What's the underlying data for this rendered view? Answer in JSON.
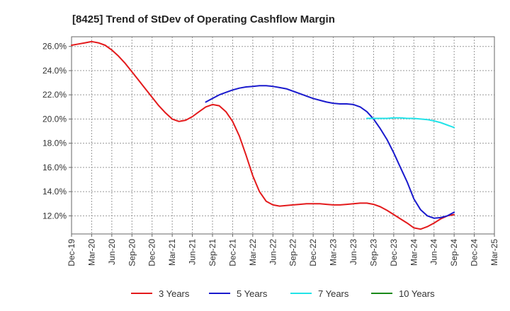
{
  "chart_data": {
    "type": "line",
    "title": "[8425]  Trend of StDev of Operating Cashflow Margin",
    "xlabel": "",
    "ylabel": "",
    "x_ticks": [
      "Dec-19",
      "Mar-20",
      "Jun-20",
      "Sep-20",
      "Dec-20",
      "Mar-21",
      "Jun-21",
      "Sep-21",
      "Dec-21",
      "Mar-22",
      "Jun-22",
      "Sep-22",
      "Dec-22",
      "Mar-23",
      "Jun-23",
      "Sep-23",
      "Dec-23",
      "Mar-24",
      "Jun-24",
      "Sep-24",
      "Dec-24",
      "Mar-25"
    ],
    "y_ticks": [
      "12.0%",
      "14.0%",
      "16.0%",
      "18.0%",
      "20.0%",
      "22.0%",
      "24.0%",
      "26.0%"
    ],
    "ylim": [
      10.5,
      26.8
    ],
    "grid": true,
    "legend_position": "bottom",
    "series": [
      {
        "name": "3 Years",
        "color": "#e31a1c",
        "points": [
          [
            "Dec-19",
            26.1
          ],
          [
            "Jan-20",
            26.2
          ],
          [
            "Feb-20",
            26.3
          ],
          [
            "Mar-20",
            26.4
          ],
          [
            "Apr-20",
            26.3
          ],
          [
            "May-20",
            26.1
          ],
          [
            "Jun-20",
            25.7
          ],
          [
            "Jul-20",
            25.2
          ],
          [
            "Aug-20",
            24.6
          ],
          [
            "Sep-20",
            23.9
          ],
          [
            "Oct-20",
            23.2
          ],
          [
            "Nov-20",
            22.5
          ],
          [
            "Dec-20",
            21.8
          ],
          [
            "Jan-21",
            21.1
          ],
          [
            "Feb-21",
            20.5
          ],
          [
            "Mar-21",
            20.0
          ],
          [
            "Apr-21",
            19.8
          ],
          [
            "May-21",
            19.9
          ],
          [
            "Jun-21",
            20.2
          ],
          [
            "Jul-21",
            20.6
          ],
          [
            "Aug-21",
            21.0
          ],
          [
            "Sep-21",
            21.2
          ],
          [
            "Oct-21",
            21.1
          ],
          [
            "Nov-21",
            20.6
          ],
          [
            "Dec-21",
            19.8
          ],
          [
            "Jan-22",
            18.6
          ],
          [
            "Feb-22",
            17.0
          ],
          [
            "Mar-22",
            15.3
          ],
          [
            "Apr-22",
            14.0
          ],
          [
            "May-22",
            13.2
          ],
          [
            "Jun-22",
            12.9
          ],
          [
            "Jul-22",
            12.8
          ],
          [
            "Aug-22",
            12.85
          ],
          [
            "Sep-22",
            12.9
          ],
          [
            "Oct-22",
            12.95
          ],
          [
            "Nov-22",
            13.0
          ],
          [
            "Dec-22",
            13.0
          ],
          [
            "Jan-23",
            13.0
          ],
          [
            "Feb-23",
            12.95
          ],
          [
            "Mar-23",
            12.9
          ],
          [
            "Apr-23",
            12.9
          ],
          [
            "May-23",
            12.95
          ],
          [
            "Jun-23",
            13.0
          ],
          [
            "Jul-23",
            13.05
          ],
          [
            "Aug-23",
            13.05
          ],
          [
            "Sep-23",
            12.95
          ],
          [
            "Oct-23",
            12.75
          ],
          [
            "Nov-23",
            12.45
          ],
          [
            "Dec-23",
            12.1
          ],
          [
            "Jan-24",
            11.75
          ],
          [
            "Feb-24",
            11.4
          ],
          [
            "Mar-24",
            11.0
          ],
          [
            "Apr-24",
            10.9
          ],
          [
            "May-24",
            11.1
          ],
          [
            "Jun-24",
            11.4
          ],
          [
            "Jul-24",
            11.75
          ],
          [
            "Aug-24",
            12.0
          ],
          [
            "Sep-24",
            12.1
          ]
        ]
      },
      {
        "name": "5 Years",
        "color": "#1a1acd",
        "points": [
          [
            "Aug-21",
            21.4
          ],
          [
            "Sep-21",
            21.7
          ],
          [
            "Oct-21",
            22.0
          ],
          [
            "Nov-21",
            22.2
          ],
          [
            "Dec-21",
            22.4
          ],
          [
            "Jan-22",
            22.55
          ],
          [
            "Feb-22",
            22.65
          ],
          [
            "Mar-22",
            22.7
          ],
          [
            "Apr-22",
            22.75
          ],
          [
            "May-22",
            22.75
          ],
          [
            "Jun-22",
            22.7
          ],
          [
            "Jul-22",
            22.6
          ],
          [
            "Aug-22",
            22.5
          ],
          [
            "Sep-22",
            22.3
          ],
          [
            "Oct-22",
            22.1
          ],
          [
            "Nov-22",
            21.9
          ],
          [
            "Dec-22",
            21.7
          ],
          [
            "Jan-23",
            21.55
          ],
          [
            "Feb-23",
            21.4
          ],
          [
            "Mar-23",
            21.3
          ],
          [
            "Apr-23",
            21.25
          ],
          [
            "May-23",
            21.25
          ],
          [
            "Jun-23",
            21.2
          ],
          [
            "Jul-23",
            21.0
          ],
          [
            "Aug-23",
            20.6
          ],
          [
            "Sep-23",
            20.0
          ],
          [
            "Oct-23",
            19.2
          ],
          [
            "Nov-23",
            18.3
          ],
          [
            "Dec-23",
            17.2
          ],
          [
            "Jan-24",
            16.0
          ],
          [
            "Feb-24",
            14.8
          ],
          [
            "Mar-24",
            13.4
          ],
          [
            "Apr-24",
            12.5
          ],
          [
            "May-24",
            12.0
          ],
          [
            "Jun-24",
            11.8
          ],
          [
            "Jul-24",
            11.85
          ],
          [
            "Aug-24",
            12.0
          ],
          [
            "Sep-24",
            12.3
          ]
        ]
      },
      {
        "name": "7 Years",
        "color": "#22e3e8",
        "points": [
          [
            "Aug-23",
            20.05
          ],
          [
            "Sep-23",
            20.05
          ],
          [
            "Oct-23",
            20.05
          ],
          [
            "Nov-23",
            20.05
          ],
          [
            "Dec-23",
            20.1
          ],
          [
            "Jan-24",
            20.1
          ],
          [
            "Feb-24",
            20.05
          ],
          [
            "Mar-24",
            20.05
          ],
          [
            "Apr-24",
            20.0
          ],
          [
            "May-24",
            19.95
          ],
          [
            "Jun-24",
            19.85
          ],
          [
            "Jul-24",
            19.7
          ],
          [
            "Aug-24",
            19.5
          ],
          [
            "Sep-24",
            19.3
          ]
        ]
      },
      {
        "name": "10 Years",
        "color": "#1a8a1a",
        "points": []
      }
    ]
  }
}
